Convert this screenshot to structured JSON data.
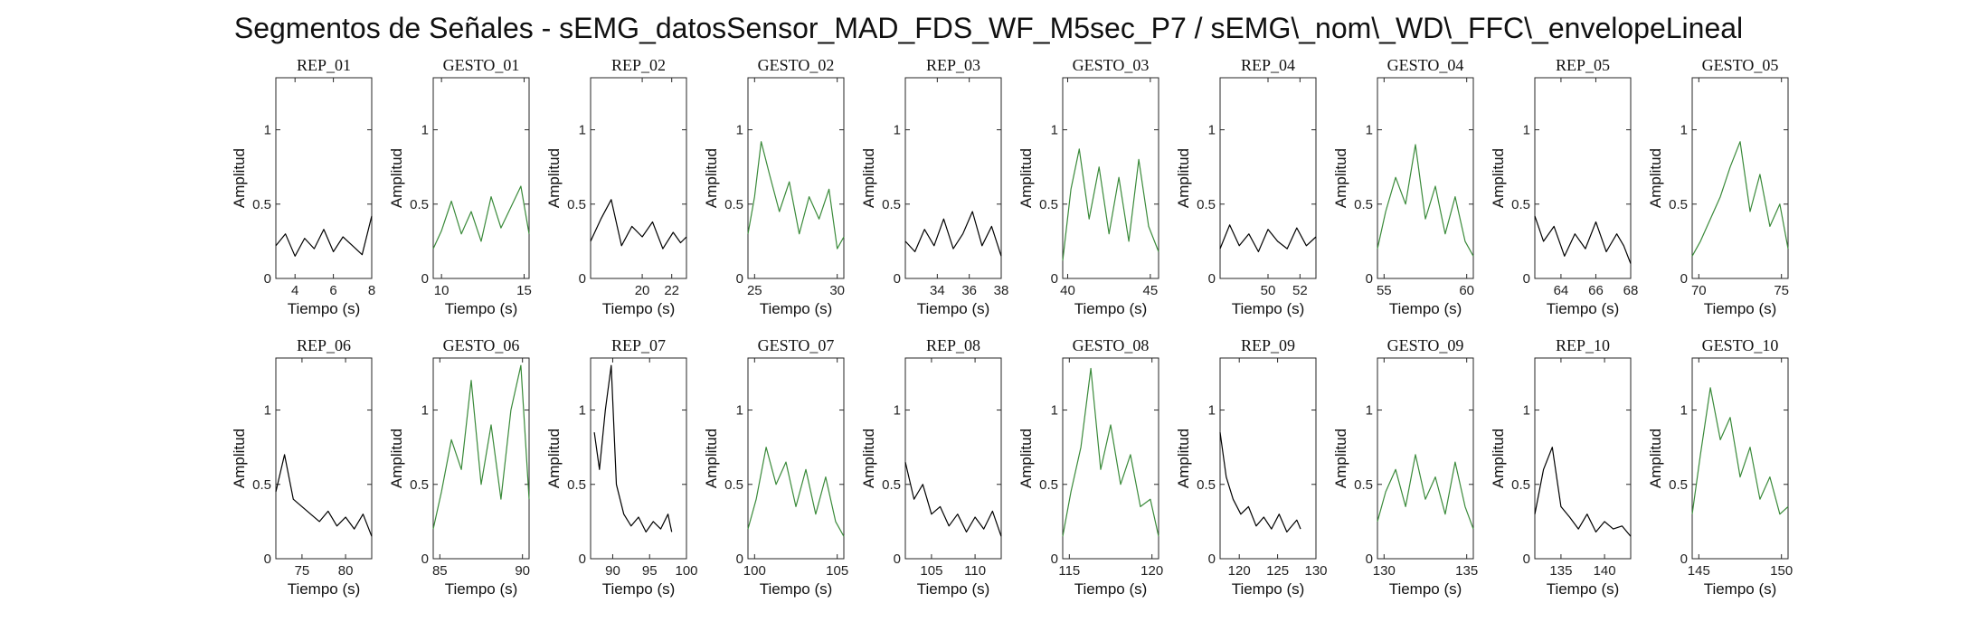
{
  "title": "Segmentos de Señales - sEMG_datosSensor_MAD_FDS_WF_M5sec_P7 / sEMG\\_nom\\_WD\\_FFC\\_envelopeLineal",
  "colors": {
    "rep": "#000000",
    "gesto": "#3a8a3a",
    "axes": "#262626"
  },
  "chart_data": [
    {
      "type": "line",
      "title": "REP_01",
      "xlabel": "Tiempo (s)",
      "ylabel": "Amplitud",
      "xlim": [
        3,
        8
      ],
      "ylim": [
        0,
        1.35
      ],
      "xticks": [
        4,
        6,
        8
      ],
      "yticks": [
        0,
        0.5,
        1
      ],
      "color": "#000000",
      "series": [
        {
          "x": [
            3.0,
            3.5,
            4.0,
            4.5,
            5.0,
            5.5,
            6.0,
            6.5,
            7.0,
            7.5,
            8.0
          ],
          "y": [
            0.22,
            0.3,
            0.15,
            0.27,
            0.2,
            0.33,
            0.18,
            0.28,
            0.22,
            0.16,
            0.42
          ]
        }
      ]
    },
    {
      "type": "line",
      "title": "GESTO_01",
      "xlabel": "Tiempo (s)",
      "ylabel": "Amplitud",
      "xlim": [
        9.5,
        15.3
      ],
      "ylim": [
        0,
        1.35
      ],
      "xticks": [
        10,
        15
      ],
      "yticks": [
        0,
        0.5,
        1
      ],
      "color": "#3a8a3a",
      "series": [
        {
          "x": [
            9.5,
            10.0,
            10.6,
            11.2,
            11.8,
            12.4,
            13.0,
            13.6,
            14.2,
            14.8,
            15.3
          ],
          "y": [
            0.2,
            0.32,
            0.52,
            0.3,
            0.45,
            0.25,
            0.55,
            0.34,
            0.48,
            0.62,
            0.3
          ]
        }
      ]
    },
    {
      "type": "line",
      "title": "REP_02",
      "xlabel": "Tiempo (s)",
      "ylabel": "Amplitud",
      "xlim": [
        16.5,
        23
      ],
      "ylim": [
        0,
        1.35
      ],
      "xticks": [
        20,
        22
      ],
      "yticks": [
        0,
        0.5,
        1
      ],
      "color": "#000000",
      "series": [
        {
          "x": [
            16.5,
            17.2,
            17.9,
            18.6,
            19.3,
            20.0,
            20.7,
            21.4,
            22.1,
            22.6,
            23.0
          ],
          "y": [
            0.25,
            0.4,
            0.53,
            0.22,
            0.35,
            0.28,
            0.38,
            0.2,
            0.31,
            0.24,
            0.28
          ]
        }
      ]
    },
    {
      "type": "line",
      "title": "GESTO_02",
      "xlabel": "Tiempo (s)",
      "ylabel": "Amplitud",
      "xlim": [
        24.6,
        30.4
      ],
      "ylim": [
        0,
        1.35
      ],
      "xticks": [
        25,
        30
      ],
      "yticks": [
        0,
        0.5,
        1
      ],
      "color": "#3a8a3a",
      "series": [
        {
          "x": [
            24.6,
            25.0,
            25.4,
            25.9,
            26.5,
            27.1,
            27.7,
            28.3,
            28.9,
            29.5,
            30.0,
            30.4
          ],
          "y": [
            0.3,
            0.55,
            0.92,
            0.7,
            0.45,
            0.65,
            0.3,
            0.55,
            0.4,
            0.6,
            0.2,
            0.28
          ]
        }
      ]
    },
    {
      "type": "line",
      "title": "REP_03",
      "xlabel": "Tiempo (s)",
      "ylabel": "Amplitud",
      "xlim": [
        32,
        38
      ],
      "ylim": [
        0,
        1.35
      ],
      "xticks": [
        34,
        36,
        38
      ],
      "yticks": [
        0,
        0.5,
        1
      ],
      "color": "#000000",
      "series": [
        {
          "x": [
            32.0,
            32.6,
            33.2,
            33.8,
            34.4,
            35.0,
            35.6,
            36.2,
            36.8,
            37.4,
            38.0
          ],
          "y": [
            0.25,
            0.18,
            0.33,
            0.22,
            0.4,
            0.2,
            0.3,
            0.45,
            0.22,
            0.35,
            0.15
          ]
        }
      ]
    },
    {
      "type": "line",
      "title": "GESTO_03",
      "xlabel": "Tiempo (s)",
      "ylabel": "Amplitud",
      "xlim": [
        39.7,
        45.5
      ],
      "ylim": [
        0,
        1.35
      ],
      "xticks": [
        40,
        45
      ],
      "yticks": [
        0,
        0.5,
        1
      ],
      "color": "#3a8a3a",
      "series": [
        {
          "x": [
            39.7,
            40.2,
            40.7,
            41.3,
            41.9,
            42.5,
            43.1,
            43.7,
            44.3,
            44.9,
            45.5
          ],
          "y": [
            0.12,
            0.6,
            0.87,
            0.4,
            0.75,
            0.3,
            0.68,
            0.25,
            0.8,
            0.35,
            0.18
          ]
        }
      ]
    },
    {
      "type": "line",
      "title": "REP_04",
      "xlabel": "Tiempo (s)",
      "ylabel": "Amplitud",
      "xlim": [
        47,
        53
      ],
      "ylim": [
        0,
        1.35
      ],
      "xticks": [
        50,
        52
      ],
      "yticks": [
        0,
        0.5,
        1
      ],
      "color": "#000000",
      "series": [
        {
          "x": [
            47.0,
            47.6,
            48.2,
            48.8,
            49.4,
            50.0,
            50.6,
            51.2,
            51.8,
            52.4,
            53.0
          ],
          "y": [
            0.2,
            0.36,
            0.22,
            0.3,
            0.18,
            0.33,
            0.25,
            0.2,
            0.34,
            0.22,
            0.28
          ]
        }
      ]
    },
    {
      "type": "line",
      "title": "GESTO_04",
      "xlabel": "Tiempo (s)",
      "ylabel": "Amplitud",
      "xlim": [
        54.6,
        60.4
      ],
      "ylim": [
        0,
        1.35
      ],
      "xticks": [
        55,
        60
      ],
      "yticks": [
        0,
        0.5,
        1
      ],
      "color": "#3a8a3a",
      "series": [
        {
          "x": [
            54.6,
            55.1,
            55.7,
            56.3,
            56.9,
            57.5,
            58.1,
            58.7,
            59.3,
            59.9,
            60.4
          ],
          "y": [
            0.2,
            0.45,
            0.68,
            0.5,
            0.9,
            0.4,
            0.62,
            0.3,
            0.55,
            0.25,
            0.15
          ]
        }
      ]
    },
    {
      "type": "line",
      "title": "REP_05",
      "xlabel": "Tiempo (s)",
      "ylabel": "Amplitud",
      "xlim": [
        62.5,
        68
      ],
      "ylim": [
        0,
        1.35
      ],
      "xticks": [
        64,
        66,
        68
      ],
      "yticks": [
        0,
        0.5,
        1
      ],
      "color": "#000000",
      "series": [
        {
          "x": [
            62.5,
            63.0,
            63.6,
            64.2,
            64.8,
            65.4,
            66.0,
            66.6,
            67.2,
            67.6,
            68.0
          ],
          "y": [
            0.42,
            0.25,
            0.35,
            0.15,
            0.3,
            0.2,
            0.38,
            0.18,
            0.3,
            0.22,
            0.1
          ]
        }
      ]
    },
    {
      "type": "line",
      "title": "GESTO_05",
      "xlabel": "Tiempo (s)",
      "ylabel": "Amplitud",
      "xlim": [
        69.6,
        75.4
      ],
      "ylim": [
        0,
        1.35
      ],
      "xticks": [
        70,
        75
      ],
      "yticks": [
        0,
        0.5,
        1
      ],
      "color": "#3a8a3a",
      "series": [
        {
          "x": [
            69.6,
            70.1,
            70.7,
            71.3,
            71.9,
            72.5,
            73.1,
            73.7,
            74.3,
            74.9,
            75.4
          ],
          "y": [
            0.15,
            0.25,
            0.4,
            0.55,
            0.75,
            0.92,
            0.45,
            0.7,
            0.35,
            0.5,
            0.2
          ]
        }
      ]
    },
    {
      "type": "line",
      "title": "REP_06",
      "xlabel": "Tiempo (s)",
      "ylabel": "Amplitud",
      "xlim": [
        72,
        83
      ],
      "ylim": [
        0,
        1.35
      ],
      "xticks": [
        75,
        80
      ],
      "yticks": [
        0,
        0.5,
        1
      ],
      "color": "#000000",
      "series": [
        {
          "x": [
            72.0,
            73.0,
            74.0,
            75.0,
            76.0,
            77.0,
            78.0,
            79.0,
            80.0,
            81.0,
            82.0,
            83.0
          ],
          "y": [
            0.45,
            0.7,
            0.4,
            0.35,
            0.3,
            0.25,
            0.32,
            0.22,
            0.28,
            0.2,
            0.3,
            0.15
          ]
        }
      ]
    },
    {
      "type": "line",
      "title": "GESTO_06",
      "xlabel": "Tiempo (s)",
      "ylabel": "Amplitud",
      "xlim": [
        84.6,
        90.4
      ],
      "ylim": [
        0,
        1.35
      ],
      "xticks": [
        85,
        90
      ],
      "yticks": [
        0,
        0.5,
        1
      ],
      "color": "#3a8a3a",
      "series": [
        {
          "x": [
            84.6,
            85.1,
            85.7,
            86.3,
            86.9,
            87.5,
            88.1,
            88.7,
            89.3,
            89.9,
            90.4
          ],
          "y": [
            0.2,
            0.45,
            0.8,
            0.6,
            1.2,
            0.5,
            0.9,
            0.4,
            1.0,
            1.3,
            0.4
          ]
        }
      ]
    },
    {
      "type": "line",
      "title": "REP_07",
      "xlabel": "Tiempo (s)",
      "ylabel": "Amplitud",
      "xlim": [
        87,
        100
      ],
      "ylim": [
        0,
        1.35
      ],
      "xticks": [
        90,
        95,
        100
      ],
      "yticks": [
        0,
        0.5,
        1
      ],
      "color": "#000000",
      "series": [
        {
          "x": [
            87.5,
            88.2,
            89.0,
            89.8,
            90.5,
            91.5,
            92.5,
            93.5,
            94.5,
            95.5,
            96.5,
            97.5,
            98.0
          ],
          "y": [
            0.85,
            0.6,
            1.0,
            1.3,
            0.5,
            0.3,
            0.22,
            0.28,
            0.18,
            0.25,
            0.2,
            0.3,
            0.18
          ]
        }
      ]
    },
    {
      "type": "line",
      "title": "GESTO_07",
      "xlabel": "Tiempo (s)",
      "ylabel": "Amplitud",
      "xlim": [
        99.6,
        105.4
      ],
      "ylim": [
        0,
        1.35
      ],
      "xticks": [
        100,
        105
      ],
      "yticks": [
        0,
        0.5,
        1
      ],
      "color": "#3a8a3a",
      "series": [
        {
          "x": [
            99.6,
            100.1,
            100.7,
            101.3,
            101.9,
            102.5,
            103.1,
            103.7,
            104.3,
            104.9,
            105.4
          ],
          "y": [
            0.2,
            0.4,
            0.75,
            0.5,
            0.65,
            0.35,
            0.6,
            0.3,
            0.55,
            0.25,
            0.15
          ]
        }
      ]
    },
    {
      "type": "line",
      "title": "REP_08",
      "xlabel": "Tiempo (s)",
      "ylabel": "Amplitud",
      "xlim": [
        102,
        113
      ],
      "ylim": [
        0,
        1.35
      ],
      "xticks": [
        105,
        110
      ],
      "yticks": [
        0,
        0.5,
        1
      ],
      "color": "#000000",
      "series": [
        {
          "x": [
            102.0,
            103.0,
            104.0,
            105.0,
            106.0,
            107.0,
            108.0,
            109.0,
            110.0,
            111.0,
            112.0,
            113.0
          ],
          "y": [
            0.65,
            0.4,
            0.5,
            0.3,
            0.35,
            0.22,
            0.3,
            0.18,
            0.28,
            0.2,
            0.32,
            0.15
          ]
        }
      ]
    },
    {
      "type": "line",
      "title": "GESTO_08",
      "xlabel": "Tiempo (s)",
      "ylabel": "Amplitud",
      "xlim": [
        114.6,
        120.4
      ],
      "ylim": [
        0,
        1.35
      ],
      "xticks": [
        115,
        120
      ],
      "yticks": [
        0,
        0.5,
        1
      ],
      "color": "#3a8a3a",
      "series": [
        {
          "x": [
            114.6,
            115.1,
            115.7,
            116.3,
            116.9,
            117.5,
            118.1,
            118.7,
            119.3,
            119.9,
            120.4
          ],
          "y": [
            0.15,
            0.45,
            0.75,
            1.28,
            0.6,
            0.9,
            0.5,
            0.7,
            0.35,
            0.4,
            0.15
          ]
        }
      ]
    },
    {
      "type": "line",
      "title": "REP_09",
      "xlabel": "Tiempo (s)",
      "ylabel": "Amplitud",
      "xlim": [
        117.5,
        130
      ],
      "ylim": [
        0,
        1.35
      ],
      "xticks": [
        120,
        125,
        130
      ],
      "yticks": [
        0,
        0.5,
        1
      ],
      "color": "#000000",
      "series": [
        {
          "x": [
            117.5,
            118.3,
            119.2,
            120.2,
            121.2,
            122.2,
            123.2,
            124.2,
            125.2,
            126.2,
            127.5,
            128.0
          ],
          "y": [
            0.85,
            0.55,
            0.4,
            0.3,
            0.35,
            0.22,
            0.28,
            0.2,
            0.3,
            0.18,
            0.26,
            0.2
          ]
        }
      ]
    },
    {
      "type": "line",
      "title": "GESTO_09",
      "xlabel": "Tiempo (s)",
      "ylabel": "Amplitud",
      "xlim": [
        129.6,
        135.4
      ],
      "ylim": [
        0,
        1.35
      ],
      "xticks": [
        130,
        135
      ],
      "yticks": [
        0,
        0.5,
        1
      ],
      "color": "#3a8a3a",
      "series": [
        {
          "x": [
            129.6,
            130.1,
            130.7,
            131.3,
            131.9,
            132.5,
            133.1,
            133.7,
            134.3,
            134.9,
            135.4
          ],
          "y": [
            0.25,
            0.45,
            0.6,
            0.35,
            0.7,
            0.4,
            0.55,
            0.3,
            0.65,
            0.35,
            0.2
          ]
        }
      ]
    },
    {
      "type": "line",
      "title": "REP_10",
      "xlabel": "Tiempo (s)",
      "ylabel": "Amplitud",
      "xlim": [
        132,
        143
      ],
      "ylim": [
        0,
        1.35
      ],
      "xticks": [
        135,
        140
      ],
      "yticks": [
        0,
        0.5,
        1
      ],
      "color": "#000000",
      "series": [
        {
          "x": [
            132.0,
            133.0,
            134.0,
            135.0,
            136.0,
            137.0,
            138.0,
            139.0,
            140.0,
            141.0,
            142.0,
            143.0
          ],
          "y": [
            0.3,
            0.6,
            0.75,
            0.35,
            0.28,
            0.2,
            0.3,
            0.18,
            0.25,
            0.2,
            0.22,
            0.15
          ]
        }
      ]
    },
    {
      "type": "line",
      "title": "GESTO_10",
      "xlabel": "Tiempo (s)",
      "ylabel": "Amplitud",
      "xlim": [
        144.6,
        150.4
      ],
      "ylim": [
        0,
        1.35
      ],
      "xticks": [
        145,
        150
      ],
      "yticks": [
        0,
        0.5,
        1
      ],
      "color": "#3a8a3a",
      "series": [
        {
          "x": [
            144.6,
            145.1,
            145.7,
            146.3,
            146.9,
            147.5,
            148.1,
            148.7,
            149.3,
            149.9,
            150.4
          ],
          "y": [
            0.3,
            0.7,
            1.15,
            0.8,
            0.95,
            0.55,
            0.75,
            0.4,
            0.55,
            0.3,
            0.35
          ]
        }
      ]
    }
  ]
}
